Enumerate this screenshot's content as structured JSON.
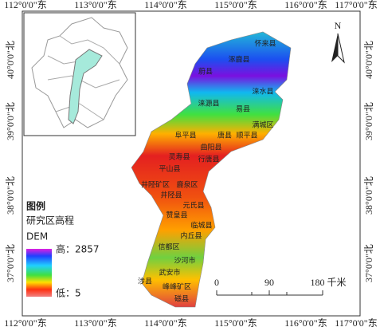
{
  "axes": {
    "top": [
      "112°0'0\"东",
      "113°0'0\"东",
      "114°0'0\"东",
      "115°0'0\"东",
      "116°0'0\"东",
      "117°0'0\"东"
    ],
    "bottom": [
      "112°0'0\"东",
      "113°0'0\"东",
      "114°0'0\"东",
      "115°0'0\"东",
      "116°0'0\"东",
      "117°0'0\"东"
    ],
    "left": [
      "40°0'0\"北",
      "39°0'0\"北",
      "38°0'0\"北",
      "37°0'0\"北"
    ],
    "right": [
      "40°0'0\"北",
      "39°0'0\"北",
      "38°0'0\"北",
      "37°0'0\"北"
    ]
  },
  "labels": [
    "怀来县",
    "涿鹿县",
    "蔚县",
    "涞水县",
    "涞源县",
    "易县",
    "满城区",
    "唐县",
    "顺平县",
    "阜平县",
    "曲阳县",
    "灵寿县",
    "行唐县",
    "平山县",
    "井陉矿区",
    "鹿泉区",
    "井陉县",
    "元氏县",
    "赞皇县",
    "临城县",
    "内丘县",
    "信都区",
    "沙河市",
    "武安市",
    "涉县",
    "峰峰矿区",
    "磁县"
  ],
  "legend": {
    "title": "图例",
    "subtitle": "研究区高程",
    "label": "DEM",
    "high": "高：2857",
    "low": "低：5"
  },
  "scale_bar": {
    "ticks": [
      "0",
      "90"
    ],
    "unit": "180 千米"
  },
  "north": "N"
}
